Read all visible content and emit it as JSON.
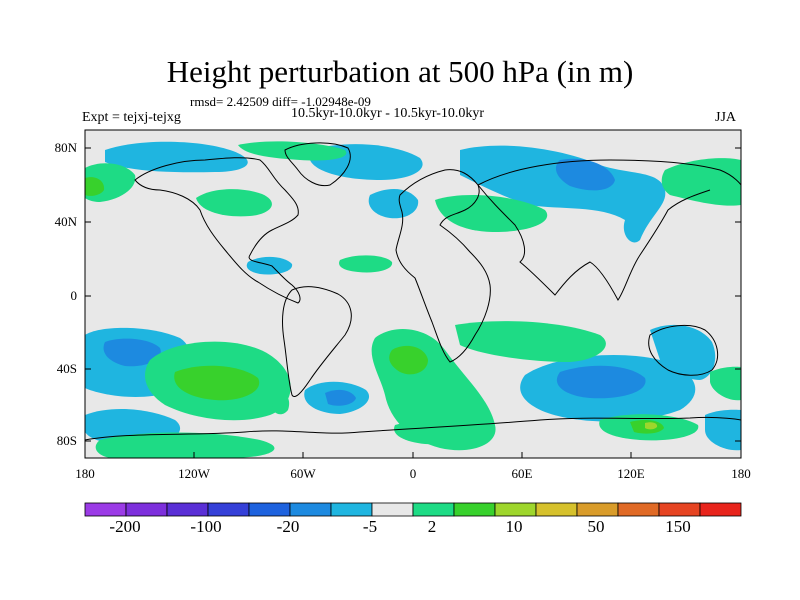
{
  "title": "Height perturbation at 500 hPa (in m)",
  "stats": "rmsd= 2.42509 diff= -1.02948e-09",
  "expt": "Expt = tejxj-tejxg",
  "period": "10.5kyr-10.0kyr - 10.5kyr-10.0kyr",
  "season": "JJA",
  "y_ticks": [
    "80N",
    "40N",
    "0",
    "40S",
    "80S"
  ],
  "x_ticks": [
    "180",
    "120W",
    "60W",
    "0",
    "60E",
    "120E",
    "180"
  ],
  "colorbar": {
    "colors": [
      "#9b3be6",
      "#7d2fdc",
      "#5a2fd6",
      "#3540d8",
      "#1e62de",
      "#1d8ae0",
      "#1fb5e0",
      "#e8e8e8",
      "#1edb85",
      "#38d12c",
      "#9ed62c",
      "#d6c12c",
      "#d99c2a",
      "#e06a26",
      "#e64422",
      "#e8241c"
    ],
    "labels": [
      "-200",
      "-100",
      "-20",
      "-5",
      "2",
      "10",
      "50",
      "150"
    ]
  },
  "contour_colors": {
    "neg_light": "#1fb5e0",
    "neg_mid": "#1d8ae0",
    "pos_light": "#1edb85",
    "pos_mid": "#38d12c",
    "pos_high": "#9ed62c",
    "neutral": "#e8e8e8"
  }
}
